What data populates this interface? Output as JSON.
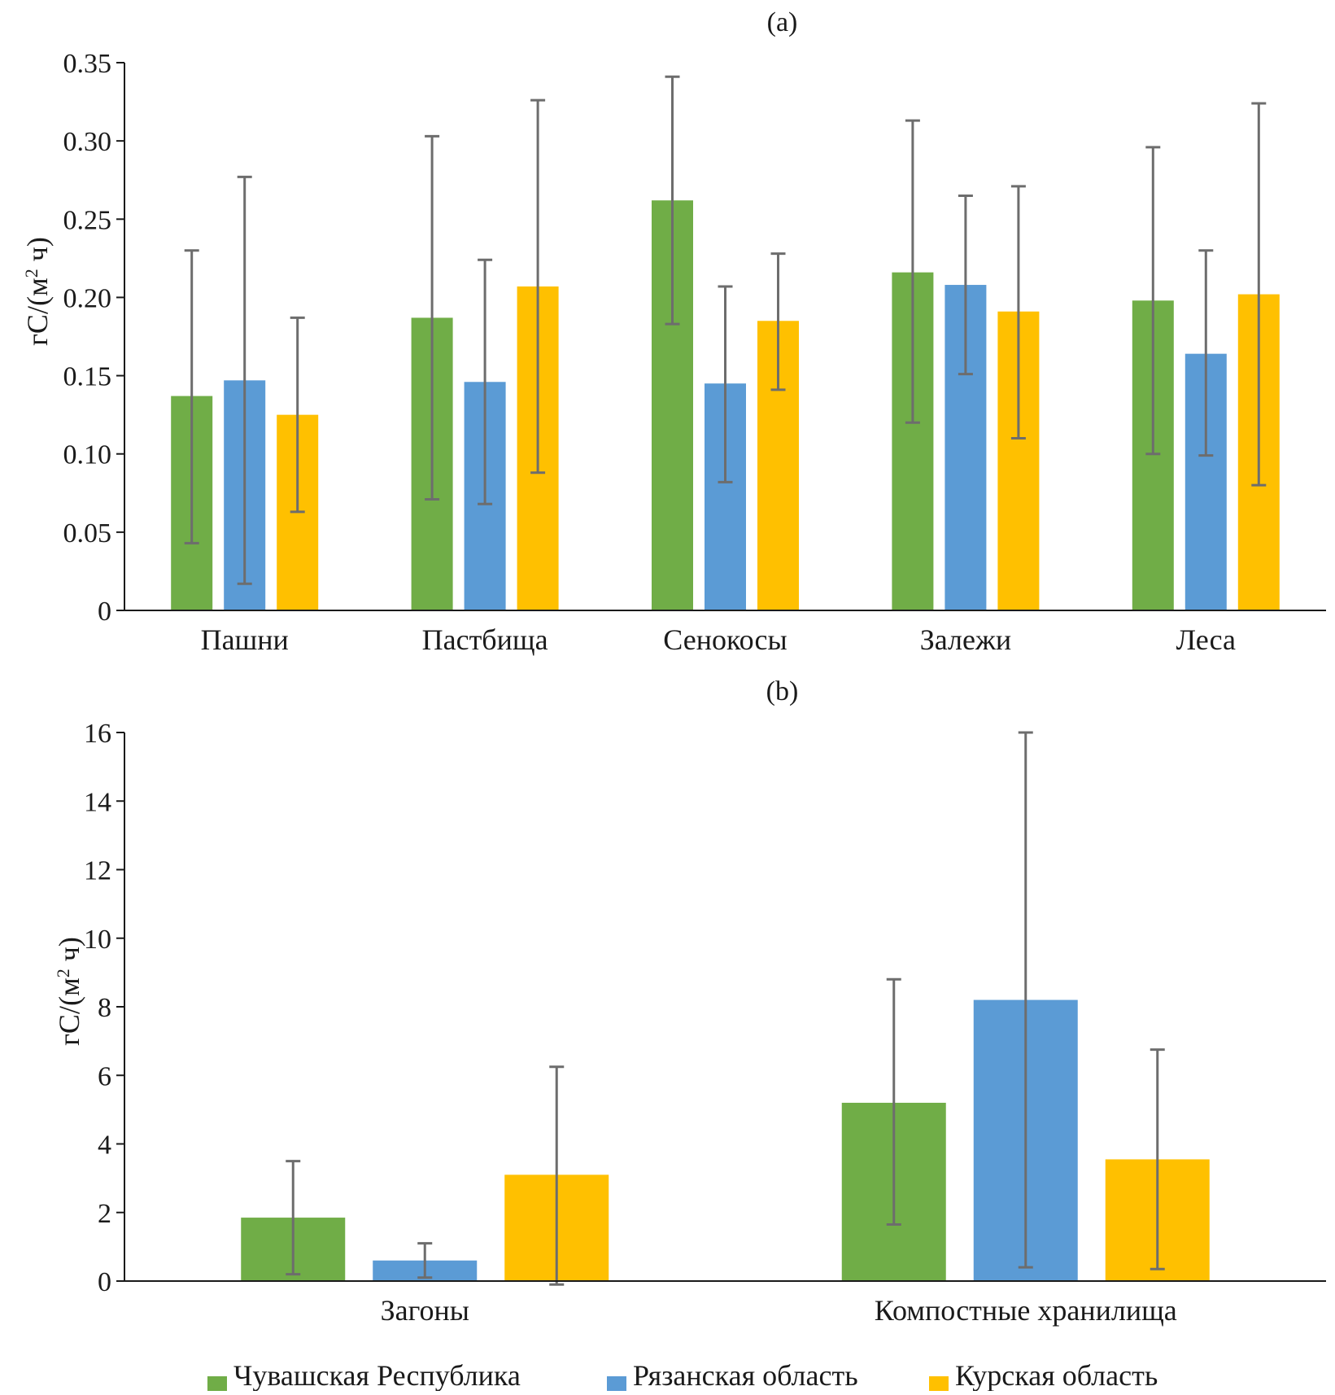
{
  "chart_data": [
    {
      "type": "bar",
      "title": "(a)",
      "ylabel": "гС/(м² ч)",
      "ylabel_base": "гС/(м",
      "ylabel_sup": "2",
      "ylabel_tail": " ч)",
      "ylim": [
        0,
        0.35
      ],
      "yticks": [
        0,
        0.05,
        0.1,
        0.15,
        0.2,
        0.25,
        0.3,
        0.35
      ],
      "ytick_labels": [
        "0",
        "0.05",
        "0.10",
        "0.15",
        "0.20",
        "0.25",
        "0.30",
        "0.35"
      ],
      "categories": [
        "Пашни",
        "Пастбища",
        "Сенокосы",
        "Залежи",
        "Леса"
      ],
      "series": [
        {
          "name": "Чувашская Республика",
          "color": "#70ad47",
          "values": [
            0.137,
            0.187,
            0.262,
            0.216,
            0.198
          ],
          "err_low": [
            0.043,
            0.071,
            0.183,
            0.12,
            0.1
          ],
          "err_high": [
            0.23,
            0.303,
            0.341,
            0.313,
            0.296
          ]
        },
        {
          "name": "Рязанская область",
          "color": "#5b9bd5",
          "values": [
            0.147,
            0.146,
            0.145,
            0.208,
            0.164
          ],
          "err_low": [
            0.017,
            0.068,
            0.082,
            0.151,
            0.099
          ],
          "err_high": [
            0.277,
            0.224,
            0.207,
            0.265,
            0.23
          ]
        },
        {
          "name": "Курская область",
          "color": "#ffc000",
          "values": [
            0.125,
            0.207,
            0.185,
            0.191,
            0.202
          ],
          "err_low": [
            0.063,
            0.088,
            0.141,
            0.11,
            0.08
          ],
          "err_high": [
            0.187,
            0.326,
            0.228,
            0.271,
            0.324
          ]
        }
      ]
    },
    {
      "type": "bar",
      "title": "(b)",
      "ylabel": "гС/(м² ч)",
      "ylabel_base": "гС/(м",
      "ylabel_sup": "2",
      "ylabel_tail": " ч)",
      "ylim": [
        0,
        16
      ],
      "yticks": [
        0,
        2,
        4,
        6,
        8,
        10,
        12,
        14,
        16
      ],
      "ytick_labels": [
        "0",
        "2",
        "4",
        "6",
        "8",
        "10",
        "12",
        "14",
        "16"
      ],
      "categories": [
        "Загоны",
        "Компостные хранилища"
      ],
      "series": [
        {
          "name": "Чувашская Республика",
          "color": "#70ad47",
          "values": [
            1.85,
            5.2
          ],
          "err_low": [
            0.2,
            1.65
          ],
          "err_high": [
            3.5,
            8.8
          ]
        },
        {
          "name": "Рязанская область",
          "color": "#5b9bd5",
          "values": [
            0.6,
            8.2
          ],
          "err_low": [
            0.1,
            0.4
          ],
          "err_high": [
            1.1,
            16.0
          ]
        },
        {
          "name": "Курская область",
          "color": "#ffc000",
          "values": [
            3.1,
            3.55
          ],
          "err_low": [
            -0.1,
            0.35
          ],
          "err_high": [
            6.25,
            6.75
          ]
        }
      ]
    }
  ],
  "legend": {
    "position": "bottom",
    "entries": [
      {
        "label": "Чувашская Республика",
        "color": "#70ad47"
      },
      {
        "label": "Рязанская область",
        "color": "#5b9bd5"
      },
      {
        "label": "Курская область",
        "color": "#ffc000"
      }
    ]
  },
  "style": {
    "axis_color": "#1a1a1a",
    "errorbar_color": "#6d6d6d"
  }
}
